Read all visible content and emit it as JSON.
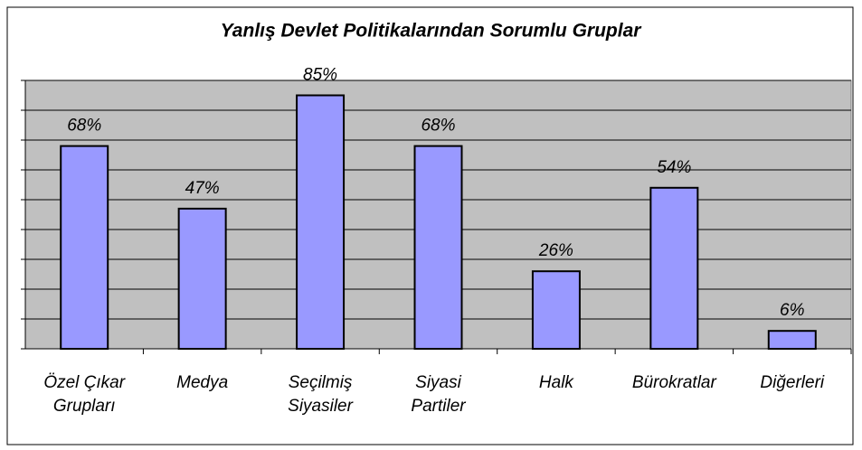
{
  "chart_data": {
    "type": "bar",
    "title": "Yanlış Devlet Politikalarından Sorumlu Gruplar",
    "categories": [
      "Özel Çıkar\nGrupları",
      "Medya",
      "Seçilmiş\nSiyasiler",
      "Siyasi\nPartiler",
      "Halk",
      "Bürokratlar",
      "Diğerleri"
    ],
    "values": [
      68,
      47,
      85,
      68,
      26,
      54,
      6
    ],
    "value_labels": [
      "68%",
      "47%",
      "85%",
      "68%",
      "26%",
      "54%",
      "6%"
    ],
    "color": "#9999ff",
    "ylim": [
      0,
      90
    ],
    "yticks": [
      0,
      10,
      20,
      30,
      40,
      50,
      60,
      70,
      80,
      90
    ],
    "grid": true
  }
}
